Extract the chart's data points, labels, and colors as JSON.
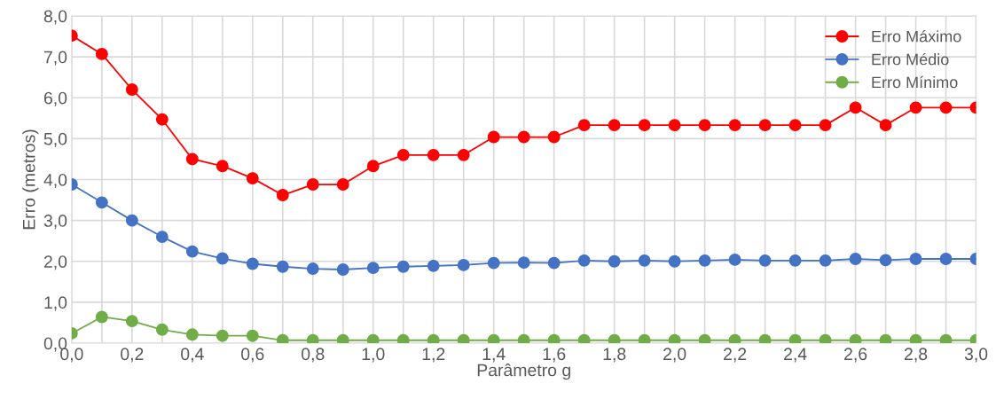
{
  "chart_data": {
    "type": "line",
    "xlabel": "Parâmetro g",
    "ylabel": "Erro (metros)",
    "x": [
      0.0,
      0.1,
      0.2,
      0.3,
      0.4,
      0.5,
      0.6,
      0.7,
      0.8,
      0.9,
      1.0,
      1.1,
      1.2,
      1.3,
      1.4,
      1.5,
      1.6,
      1.7,
      1.8,
      1.9,
      2.0,
      2.1,
      2.2,
      2.3,
      2.4,
      2.5,
      2.6,
      2.7,
      2.8,
      2.9,
      3.0
    ],
    "series": [
      {
        "name": "Erro Máximo",
        "color": "#ff0000",
        "values": [
          7.52,
          7.07,
          6.2,
          5.47,
          4.5,
          4.33,
          4.03,
          3.62,
          3.88,
          3.88,
          4.33,
          4.6,
          4.6,
          4.6,
          5.04,
          5.04,
          5.04,
          5.33,
          5.33,
          5.33,
          5.33,
          5.33,
          5.33,
          5.33,
          5.33,
          5.33,
          5.76,
          5.33,
          5.76,
          5.76,
          5.76
        ]
      },
      {
        "name": "Erro Médio",
        "color": "#4472c4",
        "values": [
          3.88,
          3.44,
          3.0,
          2.6,
          2.24,
          2.07,
          1.94,
          1.87,
          1.82,
          1.8,
          1.84,
          1.87,
          1.89,
          1.91,
          1.96,
          1.97,
          1.96,
          2.02,
          2.0,
          2.02,
          2.0,
          2.02,
          2.04,
          2.02,
          2.02,
          2.02,
          2.06,
          2.03,
          2.06,
          2.06,
          2.06
        ]
      },
      {
        "name": "Erro Mínimo",
        "color": "#70ad47",
        "values": [
          0.24,
          0.64,
          0.54,
          0.33,
          0.21,
          0.18,
          0.18,
          0.07,
          0.07,
          0.07,
          0.07,
          0.07,
          0.07,
          0.07,
          0.07,
          0.07,
          0.07,
          0.07,
          0.07,
          0.07,
          0.07,
          0.07,
          0.07,
          0.07,
          0.07,
          0.07,
          0.07,
          0.07,
          0.07,
          0.07,
          0.07
        ]
      }
    ],
    "xlim": [
      0.0,
      3.0
    ],
    "xticks": [
      {
        "value": 0.0,
        "label": "0,0"
      },
      {
        "value": 0.1,
        "label": null
      },
      {
        "value": 0.2,
        "label": "0,2"
      },
      {
        "value": 0.3,
        "label": null
      },
      {
        "value": 0.4,
        "label": "0,4"
      },
      {
        "value": 0.5,
        "label": null
      },
      {
        "value": 0.6,
        "label": "0,6"
      },
      {
        "value": 0.7,
        "label": null
      },
      {
        "value": 0.8,
        "label": "0,8"
      },
      {
        "value": 0.9,
        "label": null
      },
      {
        "value": 1.0,
        "label": "1,0"
      },
      {
        "value": 1.1,
        "label": null
      },
      {
        "value": 1.2,
        "label": "1,2"
      },
      {
        "value": 1.3,
        "label": null
      },
      {
        "value": 1.4,
        "label": "1,4"
      },
      {
        "value": 1.5,
        "label": null
      },
      {
        "value": 1.6,
        "label": "1,6"
      },
      {
        "value": 1.7,
        "label": null
      },
      {
        "value": 1.8,
        "label": "1,8"
      },
      {
        "value": 1.9,
        "label": null
      },
      {
        "value": 2.0,
        "label": "2,0"
      },
      {
        "value": 2.1,
        "label": null
      },
      {
        "value": 2.2,
        "label": "2,2"
      },
      {
        "value": 2.3,
        "label": null
      },
      {
        "value": 2.4,
        "label": "2,4"
      },
      {
        "value": 2.5,
        "label": null
      },
      {
        "value": 2.6,
        "label": "2,6"
      },
      {
        "value": 2.7,
        "label": null
      },
      {
        "value": 2.8,
        "label": "2,8"
      },
      {
        "value": 2.9,
        "label": null
      },
      {
        "value": 3.0,
        "label": "3,0"
      }
    ],
    "ylim": [
      0.0,
      8.0
    ],
    "yticks": [
      {
        "value": 0.0,
        "label": "0,0"
      },
      {
        "value": 1.0,
        "label": "1,0"
      },
      {
        "value": 2.0,
        "label": "2,0"
      },
      {
        "value": 3.0,
        "label": "3,0"
      },
      {
        "value": 4.0,
        "label": "4,0"
      },
      {
        "value": 5.0,
        "label": "5,0"
      },
      {
        "value": 6.0,
        "label": "6,0"
      },
      {
        "value": 7.0,
        "label": "7,0"
      },
      {
        "value": 8.0,
        "label": "8,0"
      }
    ],
    "grid": true,
    "legend": "top right",
    "marker": "circle",
    "line_style": "solid"
  }
}
